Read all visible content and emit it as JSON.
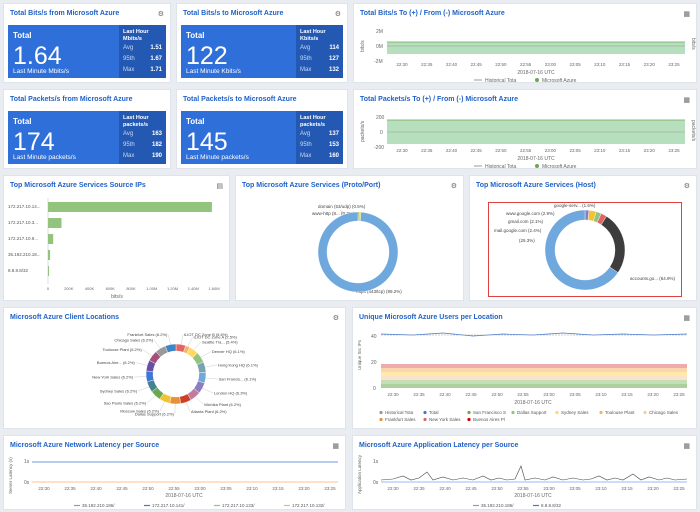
{
  "kpis": [
    {
      "title": "Total Bits/s from Microsoft Azure",
      "label": "Total",
      "value": "1.64",
      "sub": "Last Minute Mbits/s",
      "side": "Last Hour Mbits/s",
      "avg": "1.51",
      "p95": "1.67",
      "max": "1.71"
    },
    {
      "title": "Total Bits/s to Microsoft Azure",
      "label": "Total",
      "value": "122",
      "sub": "Last Minute Kbits/s",
      "side": "Last Hour Kbits/s",
      "avg": "114",
      "p95": "127",
      "max": "132"
    },
    {
      "title": "Total Packets/s from Microsoft Azure",
      "label": "Total",
      "value": "174",
      "sub": "Last Minute packets/s",
      "side": "Last Hour packets/s",
      "avg": "163",
      "p95": "182",
      "max": "190"
    },
    {
      "title": "Total Packets/s to Microsoft Azure",
      "label": "Total",
      "value": "145",
      "sub": "Last Minute packets/s",
      "side": "Last Hour packets/s",
      "avg": "137",
      "p95": "153",
      "max": "160"
    }
  ],
  "stat_labels": {
    "avg": "Avg",
    "p95": "95th",
    "max": "Max"
  },
  "bits_chart": {
    "title": "Total Bits/s To (+) / From (-)  Microsoft Azure",
    "ylabel": "bits/s",
    "ylabel2": "bits/s",
    "yticks": [
      "2M",
      "0M",
      "-2M"
    ],
    "xticks": [
      "22:30",
      "22:35",
      "22:40",
      "22:45",
      "22:50",
      "22:55",
      "23:00",
      "23:05",
      "23:10",
      "23:15",
      "23:20",
      "23:25"
    ],
    "xlabel": "2018-07-16 UTC",
    "legend": [
      "Historical Tota",
      "Microsoft Azure"
    ]
  },
  "packets_chart": {
    "title": "Total Packets/s To (+) / From (-)  Microsoft Azure",
    "ylabel": "packets/s",
    "ylabel2": "packets/s",
    "yticks": [
      "200",
      "0",
      "-200"
    ],
    "xticks": [
      "22:30",
      "22:35",
      "22:40",
      "22:45",
      "22:50",
      "22:55",
      "23:00",
      "23:05",
      "23:10",
      "23:15",
      "23:20",
      "23:25"
    ],
    "xlabel": "2018-07-16 UTC",
    "legend": [
      "Historical Tota",
      "Microsoft Azure"
    ]
  },
  "top_ips": {
    "title": "Top Microsoft Azure Services Source IPs",
    "ips": [
      "172.217.10.14...",
      "172.217.10.3...",
      "172.217.10.9...",
      "35.192.210.18...",
      "8.8.8.8/32"
    ],
    "values": [
      1.58,
      0.13,
      0.05,
      0.02,
      0.01
    ],
    "xticks": [
      "0",
      "200K",
      "400K",
      "600K",
      "800K",
      "1.00M",
      "1.20M",
      "1.40M",
      "1.60M"
    ],
    "xlabel": "bits/s",
    "xmax": 1.6
  },
  "proto_chart": {
    "title": "Top Microsoft Azure Services (Proto/Port)",
    "labels": [
      {
        "text": "domain (53/udp) (0.5%)"
      },
      {
        "text": "www-http (8...  (0.7%)"
      },
      {
        "text": "https (443/tcp) (99.2%)"
      }
    ],
    "values": [
      0.5,
      0.7,
      99.2
    ],
    "colors": [
      "#6aa84f",
      "#f1c232",
      "#6fa8dc"
    ]
  },
  "host_chart": {
    "title": "Top Microsoft Azure Services (Host)",
    "labels": [
      {
        "text": "google-serv... (1.6%)"
      },
      {
        "text": "www.google.com (2.9%)"
      },
      {
        "text": "gmail.com (2.1%)"
      },
      {
        "text": "mail.google.com (2.4%)"
      },
      {
        "text": "(25.3%)"
      },
      {
        "text": "accounts.go... (64.9%)"
      }
    ],
    "values": [
      1.6,
      2.9,
      2.1,
      2.4,
      25.3,
      64.9
    ],
    "colors": [
      "#8e7cc3",
      "#f1c232",
      "#93c47d",
      "#e06666",
      "#3d3d3d",
      "#6fa8dc"
    ]
  },
  "locations": {
    "title": "Microsoft Azure Client Locations",
    "labels": [
      "ILIOT DC Zone B (5.6%)",
      "ILIOT DC Zone A (2.5%)",
      "Seattle Tra... (5.4%)",
      "Denver HQ (6.1%)",
      "Hong Kong HQ (6.1%)",
      "San Francis... (6.1%)",
      "London HQ (6.3%)",
      "Michika Plant (6.2%)",
      "Atlanta Plant (6.2%)",
      "Dallas Support (6.2%)",
      "Moscow Sales (6.2%)",
      "Sao Paolo Sales (6.2%)",
      "Sydney Sales (6.2%)",
      "New York Sales (6.2%)",
      "Buenos Aire... (6.2%)",
      "Toulouse Plant (6.2%)",
      "Chicago Sales (6.2%)",
      "Frankfurt Sales (6.2%)"
    ],
    "values": [
      5.6,
      2.5,
      5.4,
      6.1,
      6.1,
      6.1,
      6.3,
      6.2,
      6.2,
      6.2,
      6.2,
      6.2,
      6.2,
      6.2,
      6.2,
      6.2,
      6.2,
      6.2
    ],
    "colors": [
      "#e06666",
      "#f6b26b",
      "#ffd966",
      "#93c47d",
      "#76a5af",
      "#6fa8dc",
      "#8e7cc3",
      "#c27ba0",
      "#cc4125",
      "#e69138",
      "#f1c232",
      "#6aa84f",
      "#45818e",
      "#3c78d8",
      "#674ea7",
      "#a64d79",
      "#999999",
      "#3d85c6"
    ]
  },
  "users_chart": {
    "title": "Unique Microsoft Azure Users per Location",
    "ylabel": "Unique Src IPs",
    "yticks": [
      "40",
      "20",
      "0"
    ],
    "xticks": [
      "22:30",
      "22:35",
      "22:40",
      "22:45",
      "22:50",
      "22:55",
      "23:00",
      "23:05",
      "23:10",
      "23:15",
      "23:20",
      "23:25"
    ],
    "xlabel": "2018-07-16 UTC",
    "legend": [
      {
        "name": "Historical Tota",
        "color": "#999999"
      },
      {
        "name": "Total",
        "color": "#3c78d8"
      },
      {
        "name": "San Francisco S",
        "color": "#6aa84f"
      },
      {
        "name": "Dallas Support",
        "color": "#93c47d"
      },
      {
        "name": "Sydney Sales",
        "color": "#ffd966"
      },
      {
        "name": "Toulouse Plant",
        "color": "#f6b26b"
      },
      {
        "name": "Chicago Sales",
        "color": "#f9cb9c"
      },
      {
        "name": "Frankfurt Sales",
        "color": "#e69138"
      },
      {
        "name": "New York Sales",
        "color": "#e06666"
      },
      {
        "name": "Buenos Aires Pl",
        "color": "#cc0000"
      }
    ]
  },
  "net_latency": {
    "title": "Microsoft Azure Network Latency per Source",
    "ylabel": "Server Latency (s)",
    "yticks": [
      "1s",
      "0s"
    ],
    "xticks": [
      "22:30",
      "22:35",
      "22:40",
      "22:45",
      "22:50",
      "22:55",
      "23:00",
      "23:05",
      "23:10",
      "23:15",
      "23:20",
      "23:25"
    ],
    "xlabel": "2018-07-16 UTC",
    "legend": [
      {
        "name": "35.192.210.186/",
        "color": "#999999"
      },
      {
        "name": "172.217.10.141/",
        "color": "#3c78d8"
      },
      {
        "name": "172.217.10.133/",
        "color": "#93c47d"
      },
      {
        "name": "172.217.10.132/",
        "color": "#f6b26b"
      }
    ]
  },
  "app_latency": {
    "title": "Microsoft Azure Application Latency per Source",
    "ylabel": "Application Latency",
    "yticks": [
      "1s",
      "0s"
    ],
    "xticks": [
      "22:30",
      "22:35",
      "22:40",
      "22:45",
      "22:50",
      "22:55",
      "23:00",
      "23:05",
      "23:10",
      "23:15",
      "23:20",
      "23:25"
    ],
    "xlabel": "2018-07-16 UTC",
    "legend": [
      {
        "name": "35.192.210.186/",
        "color": "#999999"
      },
      {
        "name": "8.8.8.8/32",
        "color": "#3c78d8"
      }
    ]
  },
  "icons": {
    "gear": "gear-icon",
    "bar": "bar-chart-icon"
  }
}
